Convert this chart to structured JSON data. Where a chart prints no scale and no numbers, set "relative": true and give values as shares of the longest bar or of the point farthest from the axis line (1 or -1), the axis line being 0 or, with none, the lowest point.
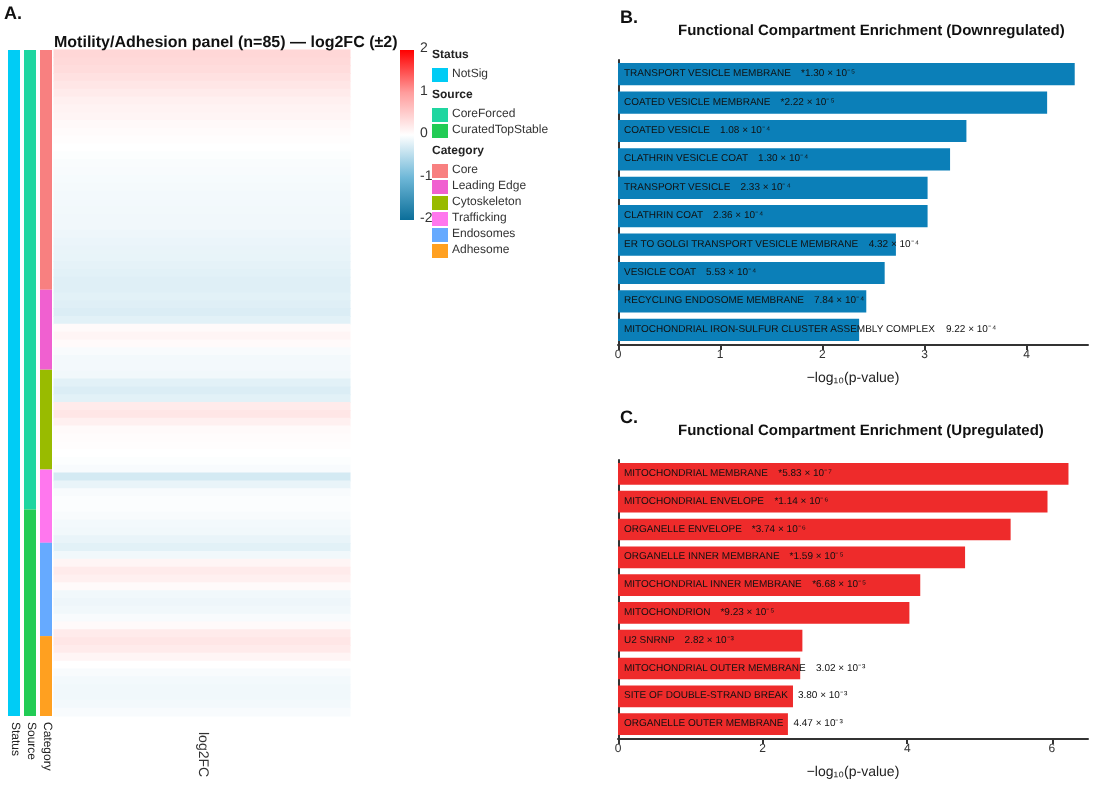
{
  "chart_data": [
    {
      "type": "heatmap",
      "title": "Motility/Adhesion panel (n=85) — log2FC (±2)",
      "annotations": [
        "A."
      ],
      "categories": [
        "log2FC"
      ],
      "y_categories": [
        null,
        null,
        null,
        null,
        null,
        null,
        null,
        null,
        null,
        null,
        null,
        null,
        null,
        null,
        null,
        null,
        null,
        null,
        null,
        null,
        null,
        null,
        null,
        null,
        null,
        null,
        null,
        null,
        null,
        null,
        null,
        null,
        null,
        null,
        null,
        null,
        null,
        null,
        null,
        null,
        null,
        null,
        null,
        null,
        null,
        null,
        null,
        null,
        null,
        null,
        null,
        null,
        null,
        null,
        null,
        null,
        null,
        null,
        null,
        null,
        null,
        null,
        null,
        null,
        null,
        null,
        null,
        null,
        null,
        null,
        null,
        null,
        null,
        null,
        null,
        null,
        null,
        null,
        null,
        null,
        null,
        null,
        null,
        null,
        null
      ],
      "cells": [
        [
          0.4
        ],
        [
          0.38
        ],
        [
          0.35
        ],
        [
          0.3
        ],
        [
          0.25
        ],
        [
          0.2
        ],
        [
          0.15
        ],
        [
          0.12
        ],
        [
          0.1
        ],
        [
          0.06
        ],
        [
          0.04
        ],
        [
          0.02
        ],
        [
          0
        ],
        [
          -0.02
        ],
        [
          -0.04
        ],
        [
          -0.05
        ],
        [
          -0.06
        ],
        [
          -0.07
        ],
        [
          -0.08
        ],
        [
          -0.08
        ],
        [
          -0.09
        ],
        [
          -0.1
        ],
        [
          -0.1
        ],
        [
          -0.12
        ],
        [
          -0.14
        ],
        [
          -0.15
        ],
        [
          -0.16
        ],
        [
          -0.18
        ],
        [
          -0.2
        ],
        [
          -0.22
        ],
        [
          -0.22
        ],
        [
          -0.2
        ],
        [
          -0.22
        ],
        [
          -0.25
        ],
        [
          -0.2
        ],
        [
          0.05
        ],
        [
          0.1
        ],
        [
          0.05
        ],
        [
          -0.05
        ],
        [
          -0.08
        ],
        [
          -0.08
        ],
        [
          -0.1
        ],
        [
          -0.2
        ],
        [
          -0.25
        ],
        [
          -0.2
        ],
        [
          0.2
        ],
        [
          0.25
        ],
        [
          0.15
        ],
        [
          0.05
        ],
        [
          0.03
        ],
        [
          0.02
        ],
        [
          0
        ],
        [
          -0.02
        ],
        [
          -0.05
        ],
        [
          -0.3
        ],
        [
          -0.15
        ],
        [
          -0.05
        ],
        [
          -0.03
        ],
        [
          -0.03
        ],
        [
          -0.05
        ],
        [
          -0.08
        ],
        [
          -0.1
        ],
        [
          -0.15
        ],
        [
          -0.2
        ],
        [
          -0.1
        ],
        [
          0.1
        ],
        [
          0.2
        ],
        [
          0.15
        ],
        [
          0.05
        ],
        [
          -0.1
        ],
        [
          -0.12
        ],
        [
          -0.1
        ],
        [
          -0.05
        ],
        [
          0.05
        ],
        [
          0.2
        ],
        [
          0.25
        ],
        [
          0.2
        ],
        [
          0.1
        ],
        [
          0
        ],
        [
          -0.05
        ],
        [
          -0.08
        ],
        [
          -0.1
        ],
        [
          -0.1
        ],
        [
          -0.08
        ],
        [
          -0.05
        ]
      ],
      "clim": [
        -2,
        2
      ],
      "cticks": [
        -2,
        -1,
        0,
        1,
        2
      ]
    },
    {
      "type": "bar",
      "stacked": true,
      "relative": true,
      "legend": "right",
      "categories": [
        "Status",
        "Source",
        "Category"
      ],
      "series": [
        {
          "name": "NotSig",
          "color": "#00ccf5",
          "values": [
            1,
            null,
            null
          ]
        },
        {
          "name": "CoreForced",
          "color": "#1fd6a0",
          "values": [
            null,
            0.69,
            null
          ]
        },
        {
          "name": "CuratedTopStable",
          "color": "#22cc55",
          "values": [
            null,
            0.31,
            null
          ]
        },
        {
          "name": "Core",
          "color": "#f88080",
          "values": [
            null,
            null,
            0.36
          ]
        },
        {
          "name": "Leading Edge",
          "color": "#f060d0",
          "values": [
            null,
            null,
            0.12
          ]
        },
        {
          "name": "Cytoskeleton",
          "color": "#99bb00",
          "values": [
            null,
            null,
            0.15
          ]
        },
        {
          "name": "Trafficking",
          "color": "#ff77ee",
          "values": [
            null,
            null,
            0.11
          ]
        },
        {
          "name": "Endosomes",
          "color": "#66aaff",
          "values": [
            null,
            null,
            0.14
          ]
        },
        {
          "name": "Adhesome",
          "color": "#ffa020",
          "values": [
            null,
            null,
            0.12
          ]
        }
      ]
    },
    {
      "type": "bar",
      "orientation": "horizontal",
      "title": "Functional Compartment Enrichment (Downregulated)",
      "annotations": [
        "B.",
        "*1.30 × 10⁻⁵",
        "*2.22 × 10⁻⁵",
        "1.08 × 10⁻⁴",
        "1.30 × 10⁻⁴",
        "2.33 × 10⁻⁴",
        "2.36 × 10⁻⁴",
        "4.32 × 10⁻⁴",
        "5.53 × 10⁻⁴",
        "7.84 × 10⁻⁴",
        "9.22 × 10⁻⁴"
      ],
      "xlabel": "−log₁₀(p-value)",
      "color": "#0b7fb8",
      "categories": [
        "TRANSPORT VESICLE MEMBRANE",
        "COATED VESICLE MEMBRANE",
        "COATED VESICLE",
        "CLATHRIN VESICLE COAT",
        "TRANSPORT VESICLE",
        "CLATHRIN COAT",
        "ER TO GOLGI TRANSPORT VESICLE MEMBRANE",
        "VESICLE COAT",
        "RECYCLING ENDOSOME MEMBRANE",
        "MITOCHONDRIAL IRON-SULFUR CLUSTER ASSEMBLY COMPLEX"
      ],
      "values": [
        4.47,
        4.2,
        3.41,
        3.25,
        3.03,
        3.03,
        2.72,
        2.61,
        2.43,
        2.36
      ],
      "xlim": [
        0,
        4.6
      ],
      "xticks": [
        0,
        1,
        2,
        3,
        4
      ],
      "tick_labels": "x"
    },
    {
      "type": "bar",
      "orientation": "horizontal",
      "title": "Functional Compartment Enrichment (Upregulated)",
      "annotations": [
        "C.",
        "*5.83 × 10⁻⁷",
        "*1.14 × 10⁻⁶",
        "*3.74 × 10⁻⁶",
        "*1.59 × 10⁻⁵",
        "*6.68 × 10⁻⁵",
        "*9.23 × 10⁻⁵",
        "2.82 × 10⁻³",
        "3.02 × 10⁻³",
        "3.80 × 10⁻³",
        "4.47 × 10⁻³"
      ],
      "xlabel": "−log₁₀(p-value)",
      "color": "#ee2b2b",
      "categories": [
        "MITOCHONDRIAL MEMBRANE",
        "MITOCHONDRIAL ENVELOPE",
        "ORGANELLE ENVELOPE",
        "ORGANELLE INNER MEMBRANE",
        "MITOCHONDRIAL INNER MEMBRANE",
        "MITOCHONDRION",
        "U2 SNRNP",
        "MITOCHONDRIAL OUTER MEMBRANE",
        "SITE OF DOUBLE-STRAND BREAK",
        "ORGANELLE OUTER MEMBRANE"
      ],
      "values": [
        6.23,
        5.94,
        5.43,
        4.8,
        4.18,
        4.03,
        2.55,
        2.52,
        2.42,
        2.35
      ],
      "xlim": [
        0,
        6.5
      ],
      "xticks": [
        0,
        2,
        4,
        6
      ],
      "tick_labels": "x"
    }
  ]
}
